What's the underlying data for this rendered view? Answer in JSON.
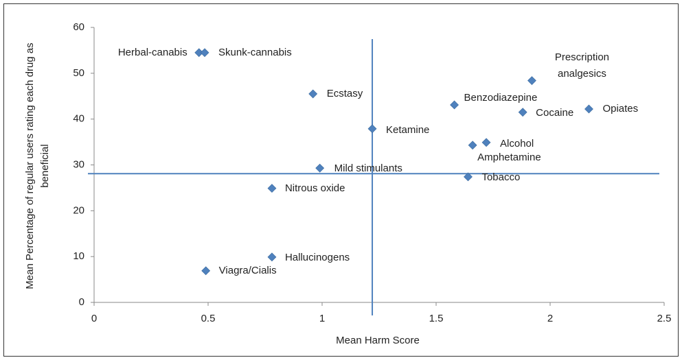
{
  "chart_data": {
    "type": "scatter",
    "xlabel": "Mean Harm Score",
    "ylabel": "Mean Percentage of regular users rating each drug as beneficial",
    "labels": [
      "Herbal-canabis",
      "Skunk-cannabis",
      "Ecstasy",
      "Prescription analgesics",
      "Benzodiazepine",
      "Cocaine",
      "Opiates",
      "Ketamine",
      "Alcohol",
      "Amphetamine",
      "Mild stimulants",
      "Tobacco",
      "Nitrous oxide",
      "Hallucinogens",
      "Viagra/Cialis"
    ],
    "x": [
      0.46,
      0.485,
      0.96,
      1.92,
      1.58,
      1.88,
      2.17,
      1.22,
      1.72,
      1.66,
      0.99,
      1.64,
      0.78,
      0.78,
      0.49
    ],
    "y": [
      54.5,
      54.5,
      45.5,
      48.4,
      43.1,
      41.5,
      42.2,
      37.9,
      34.9,
      34.3,
      29.3,
      27.4,
      24.9,
      9.9,
      6.9
    ],
    "color": "#4f81bd",
    "vlines": [
      1.22
    ],
    "hlines": [
      28.1
    ],
    "line_color": "#4f81bd",
    "xlim": [
      0,
      2.5
    ],
    "xticks": [
      0,
      0.5,
      1,
      1.5,
      2,
      2.5
    ],
    "ylim": [
      0,
      60
    ],
    "yticks": [
      0,
      10,
      20,
      30,
      40,
      50,
      60
    ]
  }
}
